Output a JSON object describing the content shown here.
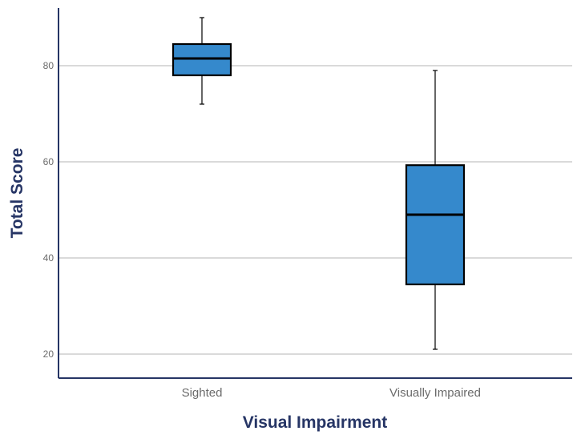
{
  "chart_data": {
    "type": "box",
    "title": "",
    "xlabel": "Visual Impairment",
    "ylabel": "Total Score",
    "ylim": [
      15,
      92
    ],
    "yticks": [
      20,
      40,
      60,
      80
    ],
    "grid": true,
    "categories": [
      "Sighted",
      "Visually Impaired"
    ],
    "boxes": [
      {
        "name": "Sighted",
        "min": 72,
        "q1": 78,
        "median": 81.5,
        "q3": 84.5,
        "max": 90
      },
      {
        "name": "Visually Impaired",
        "min": 21,
        "q1": 34.5,
        "median": 49,
        "q3": 59.3,
        "max": 79
      }
    ],
    "colors": {
      "box_fill": "#3589cc",
      "axis": "#263565",
      "grid": "#c4c4c4",
      "text": "#6b6b6b"
    }
  }
}
